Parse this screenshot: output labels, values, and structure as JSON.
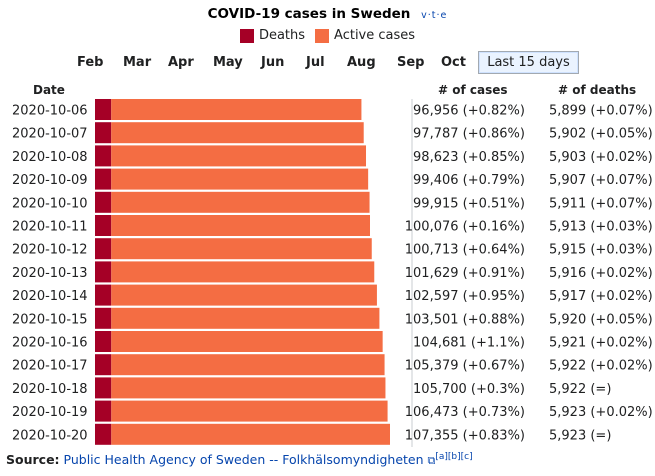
{
  "title": "COVID-19 cases in Sweden",
  "vte": "v·t·e",
  "legend": [
    {
      "label": "Deaths",
      "color": "#a50026"
    },
    {
      "label": "Active cases",
      "color": "#f46d43"
    }
  ],
  "months": [
    "Feb",
    "Mar",
    "Apr",
    "May",
    "Jun",
    "Jul",
    "Aug",
    "Sep",
    "Oct"
  ],
  "last15_label": "Last 15 days",
  "headers": {
    "date": "Date",
    "cases": "# of cases",
    "deaths": "# of deaths"
  },
  "chart_data": {
    "type": "bar",
    "orientation": "horizontal",
    "stacked": true,
    "categories": [
      "2020-10-06",
      "2020-10-07",
      "2020-10-08",
      "2020-10-09",
      "2020-10-10",
      "2020-10-11",
      "2020-10-12",
      "2020-10-13",
      "2020-10-14",
      "2020-10-15",
      "2020-10-16",
      "2020-10-17",
      "2020-10-18",
      "2020-10-19",
      "2020-10-20"
    ],
    "series": [
      {
        "name": "Deaths",
        "color": "#a50026",
        "values": [
          5899,
          5902,
          5903,
          5907,
          5911,
          5913,
          5915,
          5916,
          5917,
          5920,
          5921,
          5922,
          5922,
          5923,
          5923
        ]
      },
      {
        "name": "Active cases",
        "color": "#f46d43",
        "values": [
          91057,
          91885,
          92720,
          93499,
          94004,
          94163,
          94798,
          95713,
          96680,
          97581,
          98760,
          99457,
          99778,
          100550,
          101432
        ]
      }
    ],
    "cases": [
      96956,
      97787,
      98623,
      99406,
      99915,
      100076,
      100713,
      101629,
      102597,
      103501,
      104681,
      105379,
      105700,
      106473,
      107355
    ],
    "cases_text": [
      "96,956 (+0.82%)",
      "97,787 (+0.86%)",
      "98,623 (+0.85%)",
      "99,406 (+0.79%)",
      "99,915 (+0.51%)",
      "100,076 (+0.16%)",
      "100,713 (+0.64%)",
      "101,629 (+0.91%)",
      "102,597 (+0.95%)",
      "103,501 (+0.88%)",
      "104,681 (+1.1%)",
      "105,379 (+0.67%)",
      "105,700 (+0.3%)",
      "106,473 (+0.73%)",
      "107,355 (+0.83%)"
    ],
    "deaths_text": [
      "5,899 (+0.07%)",
      "5,902 (+0.05%)",
      "5,903 (+0.02%)",
      "5,907 (+0.07%)",
      "5,911 (+0.07%)",
      "5,913 (+0.03%)",
      "5,915 (+0.03%)",
      "5,916 (+0.02%)",
      "5,917 (+0.02%)",
      "5,920 (+0.05%)",
      "5,921 (+0.02%)",
      "5,922 (+0.02%)",
      "5,922 (=)",
      "5,923 (+0.02%)",
      "5,923 (=)"
    ],
    "xlim": [
      0,
      107355
    ]
  },
  "footer": {
    "label": "Source:",
    "link_text": "Public Health Agency of Sweden -- Folkhälsomyndigheten",
    "refs": "[a][b][c]"
  }
}
